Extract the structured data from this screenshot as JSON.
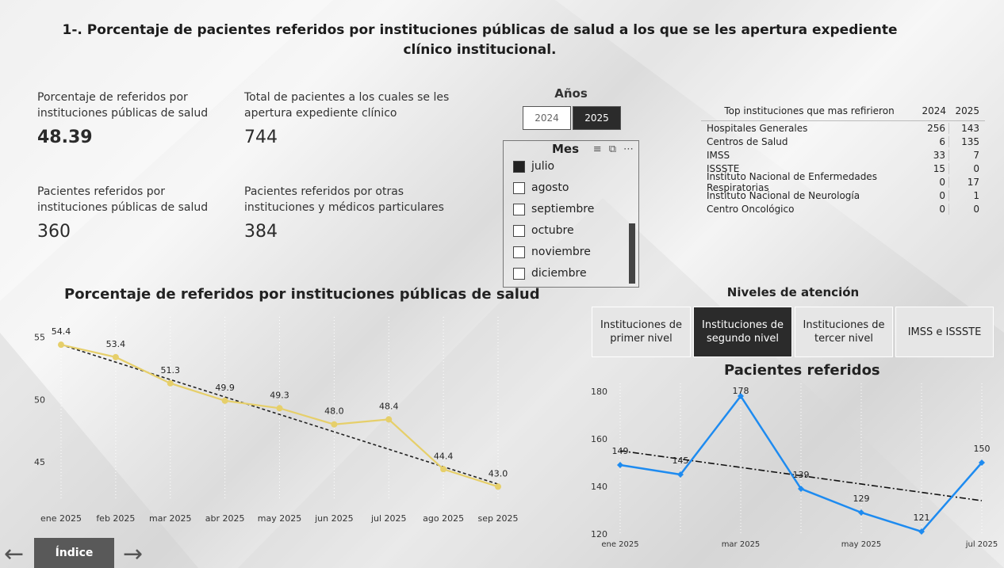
{
  "page": {
    "title": "1-. Porcentaje de pacientes referidos por instituciones públicas de salud a los que se les apertura expediente clínico institucional."
  },
  "kpis": [
    {
      "label": "Porcentaje de referidos por instituciones públicas de salud",
      "value": "48.39"
    },
    {
      "label": "Total de pacientes a los cuales se les apertura expediente clínico",
      "value": "744"
    },
    {
      "label": "Pacientes referidos por instituciones públicas de salud",
      "value": "360"
    },
    {
      "label": "Pacientes referidos por otras instituciones y médicos particulares",
      "value": "384"
    }
  ],
  "years_slicer": {
    "title": "Años",
    "options": [
      "2024",
      "2025"
    ],
    "selected": "2025"
  },
  "month_slicer": {
    "title": "Mes",
    "items": [
      {
        "label": "julio",
        "checked": true
      },
      {
        "label": "agosto",
        "checked": false
      },
      {
        "label": "septiembre",
        "checked": false
      },
      {
        "label": "octubre",
        "checked": false
      },
      {
        "label": "noviembre",
        "checked": false
      },
      {
        "label": "diciembre",
        "checked": false
      }
    ]
  },
  "top_institutions": {
    "header": "Top instituciones que mas refirieron",
    "col_2024": "2024",
    "col_2025": "2025",
    "rows": [
      {
        "name": "Hospitales Generales",
        "y2024": "256",
        "y2025": "143"
      },
      {
        "name": "Centros de Salud",
        "y2024": "6",
        "y2025": "135"
      },
      {
        "name": "IMSS",
        "y2024": "33",
        "y2025": "7"
      },
      {
        "name": "ISSSTE",
        "y2024": "15",
        "y2025": "0"
      },
      {
        "name": "Instituto Nacional de Enfermedades Respiratorias",
        "y2024": "0",
        "y2025": "17"
      },
      {
        "name": "Instituto Nacional de Neurología",
        "y2024": "0",
        "y2025": "1"
      },
      {
        "name": "Centro Oncológico",
        "y2024": "0",
        "y2025": "0"
      }
    ]
  },
  "niveles": {
    "title": "Niveles de atención",
    "buttons": [
      "Instituciones de primer nivel",
      "Instituciones de segundo nivel",
      "Instituciones de tercer nivel",
      "IMSS e ISSSTE"
    ],
    "active": "Instituciones de segundo nivel"
  },
  "nav": {
    "indice_label": "Índice"
  },
  "chart_data": [
    {
      "type": "line",
      "title": "Porcentaje de referidos por instituciones públicas de salud",
      "categories": [
        "ene 2025",
        "feb 2025",
        "mar 2025",
        "abr 2025",
        "may 2025",
        "jun 2025",
        "jul 2025",
        "ago 2025",
        "sep 2025"
      ],
      "values": [
        54.4,
        53.4,
        51.3,
        49.9,
        49.3,
        48.0,
        48.4,
        44.4,
        43.0
      ],
      "labels": [
        "54.4",
        "53.4",
        "51.3",
        "49.9",
        "49.3",
        "48.0",
        "48.4",
        "44.4",
        "43.0"
      ],
      "yticks": [
        45,
        50,
        55
      ],
      "ylim": [
        42,
        56
      ],
      "trendline": [
        54.4,
        43.2
      ],
      "line_color": "#e6cf6a",
      "trend_color": "#222222"
    },
    {
      "type": "line",
      "title": "Pacientes referidos",
      "categories": [
        "ene 2025",
        "feb 2025",
        "mar 2025",
        "abr 2025",
        "may 2025",
        "jun 2025",
        "jul 2025"
      ],
      "x_tick_labels": [
        "ene 2025",
        "",
        "mar 2025",
        "",
        "may 2025",
        "",
        "jul 2025"
      ],
      "values": [
        149,
        145,
        178,
        139,
        129,
        121,
        150
      ],
      "labels": [
        "149",
        "145",
        "178",
        "139",
        "129",
        "121",
        "150"
      ],
      "yticks": [
        120,
        140,
        160,
        180
      ],
      "ylim": [
        120,
        180
      ],
      "trendline": [
        155,
        134
      ],
      "line_color": "#1e8bf0",
      "trend_color": "#111111"
    }
  ]
}
